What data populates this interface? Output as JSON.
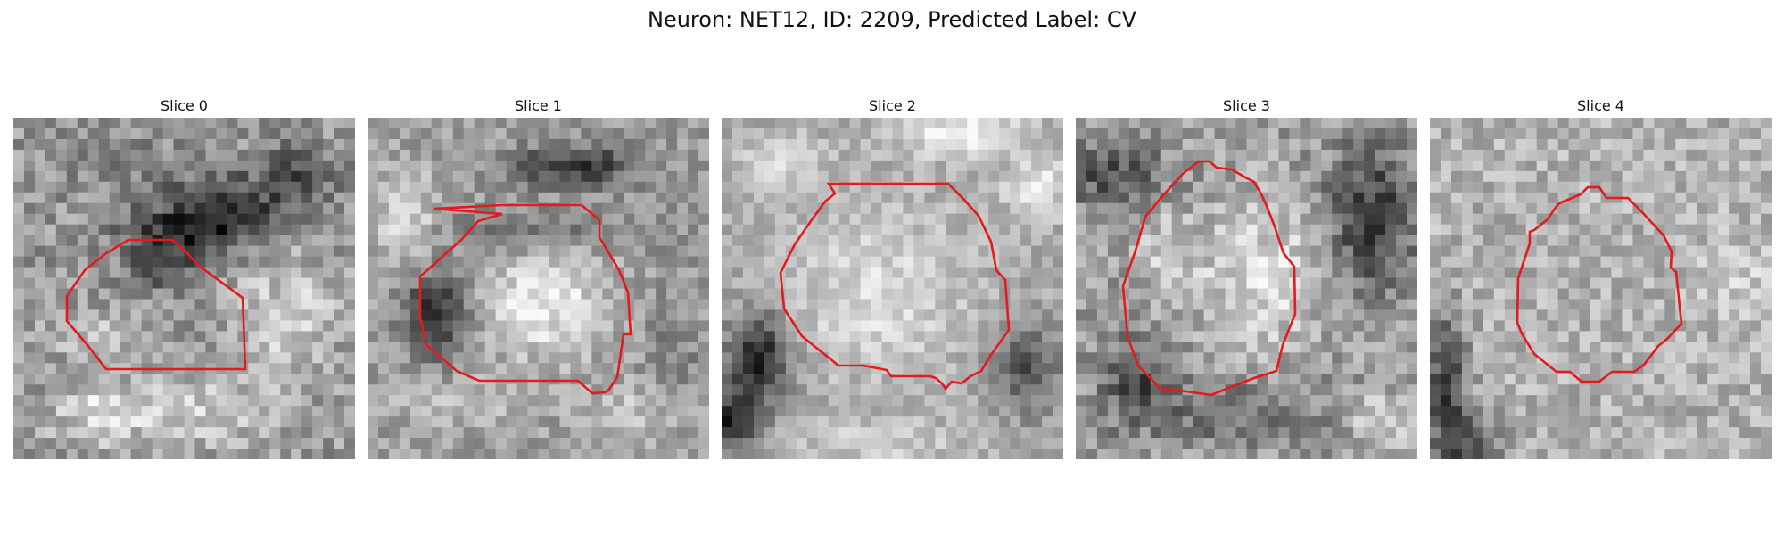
{
  "figure": {
    "title": "Neuron: NET12, ID: 2209, Predicted Label: CV"
  },
  "panels": [
    {
      "title": "Slice 0"
    },
    {
      "title": "Slice 1"
    },
    {
      "title": "Slice 2"
    },
    {
      "title": "Slice 3"
    },
    {
      "title": "Slice 4"
    }
  ],
  "colors": {
    "background": "#ffffff",
    "contour": "#e41a1c",
    "image_colormap": "grayscale"
  }
}
